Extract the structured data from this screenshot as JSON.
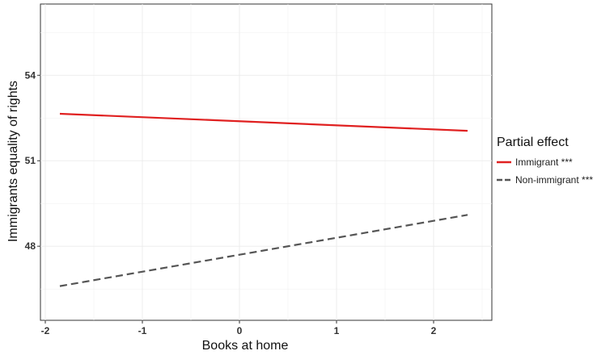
{
  "chart_data": {
    "type": "line",
    "xlabel": "Books at home",
    "ylabel": "Immigrants equality of rights",
    "x_ticks": [
      "-2",
      "-1",
      "0",
      "1",
      "2"
    ],
    "y_ticks": [
      "48",
      "51",
      "54"
    ],
    "xlim": [
      -2.05,
      2.6
    ],
    "ylim": [
      45.4,
      56.5
    ],
    "grid": true,
    "legend": {
      "title": "Partial effect",
      "placement": "right"
    },
    "series": [
      {
        "name": "Immigrant ***",
        "color": "#e02020",
        "style": "solid",
        "x": [
          -1.85,
          2.35
        ],
        "y": [
          52.65,
          52.05
        ]
      },
      {
        "name": "Non-immigrant ***",
        "color": "#555555",
        "style": "dashed",
        "x": [
          -1.85,
          2.35
        ],
        "y": [
          46.6,
          49.1
        ]
      }
    ]
  }
}
